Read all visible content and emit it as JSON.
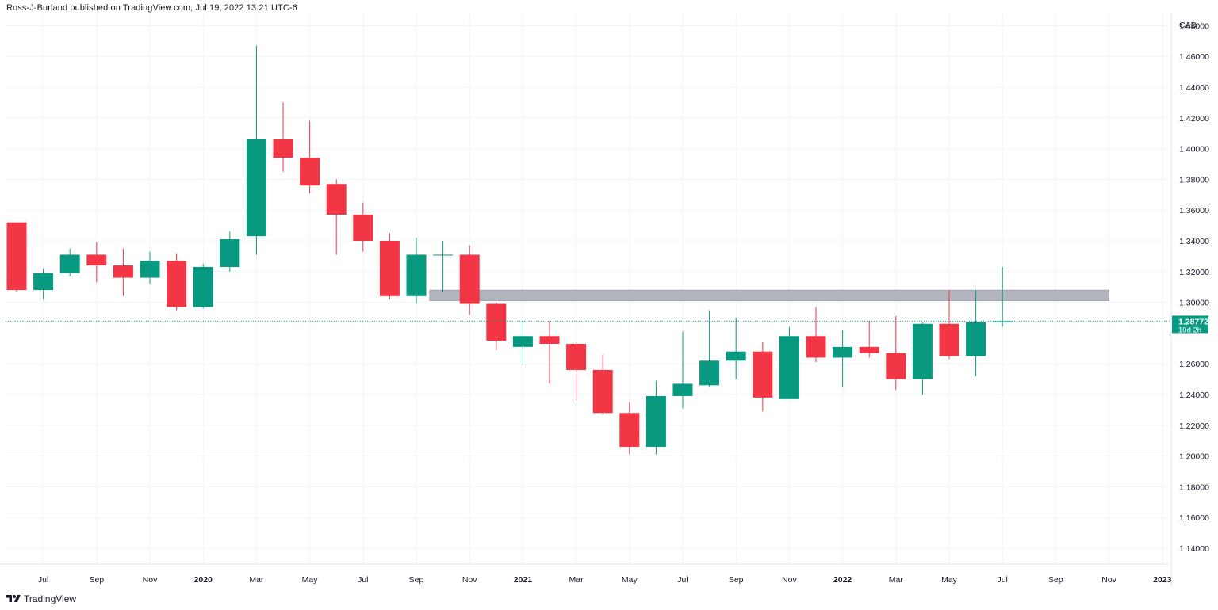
{
  "header": {
    "published": "Ross-J-Burland published on TradingView.com, Jul 19, 2022 13:21 UTC-6"
  },
  "footer": {
    "brand": "TradingView",
    "logo_icon": "tradingview-logo-icon"
  },
  "chart_data": {
    "type": "candlestick",
    "timeframe": "monthly",
    "currency_label": "CAD",
    "y_range": [
      1.13,
      1.485
    ],
    "y_ticks": [
      "1.48000",
      "1.46000",
      "1.44000",
      "1.42000",
      "1.40000",
      "1.38000",
      "1.36000",
      "1.34000",
      "1.32000",
      "1.30000",
      "1.26000",
      "1.24000",
      "1.22000",
      "1.20000",
      "1.18000",
      "1.16000",
      "1.14000"
    ],
    "x_labels": [
      {
        "text": "Jul",
        "i": 1
      },
      {
        "text": "Sep",
        "i": 3
      },
      {
        "text": "Nov",
        "i": 5
      },
      {
        "text": "2020",
        "i": 7,
        "bold": true
      },
      {
        "text": "Mar",
        "i": 9
      },
      {
        "text": "May",
        "i": 11
      },
      {
        "text": "Jul",
        "i": 13
      },
      {
        "text": "Sep",
        "i": 15
      },
      {
        "text": "Nov",
        "i": 17
      },
      {
        "text": "2021",
        "i": 19,
        "bold": true
      },
      {
        "text": "Mar",
        "i": 21
      },
      {
        "text": "May",
        "i": 23
      },
      {
        "text": "Jul",
        "i": 25
      },
      {
        "text": "Sep",
        "i": 27
      },
      {
        "text": "Nov",
        "i": 29
      },
      {
        "text": "2022",
        "i": 31,
        "bold": true
      },
      {
        "text": "Mar",
        "i": 33
      },
      {
        "text": "May",
        "i": 35
      },
      {
        "text": "Jul",
        "i": 37
      },
      {
        "text": "Sep",
        "i": 39
      },
      {
        "text": "Nov",
        "i": 41
      },
      {
        "text": "2023",
        "i": 43,
        "bold": true
      }
    ],
    "candles": [
      {
        "o": 1.352,
        "h": 1.352,
        "l": 1.307,
        "c": 1.308
      },
      {
        "o": 1.308,
        "h": 1.322,
        "l": 1.302,
        "c": 1.319
      },
      {
        "o": 1.319,
        "h": 1.335,
        "l": 1.317,
        "c": 1.331
      },
      {
        "o": 1.331,
        "h": 1.339,
        "l": 1.313,
        "c": 1.324
      },
      {
        "o": 1.324,
        "h": 1.335,
        "l": 1.304,
        "c": 1.316
      },
      {
        "o": 1.316,
        "h": 1.333,
        "l": 1.312,
        "c": 1.327
      },
      {
        "o": 1.327,
        "h": 1.332,
        "l": 1.295,
        "c": 1.297
      },
      {
        "o": 1.297,
        "h": 1.325,
        "l": 1.296,
        "c": 1.323
      },
      {
        "o": 1.323,
        "h": 1.346,
        "l": 1.32,
        "c": 1.341
      },
      {
        "o": 1.343,
        "h": 1.467,
        "l": 1.331,
        "c": 1.406
      },
      {
        "o": 1.406,
        "h": 1.43,
        "l": 1.385,
        "c": 1.394
      },
      {
        "o": 1.394,
        "h": 1.418,
        "l": 1.371,
        "c": 1.376
      },
      {
        "o": 1.377,
        "h": 1.38,
        "l": 1.331,
        "c": 1.357
      },
      {
        "o": 1.357,
        "h": 1.365,
        "l": 1.333,
        "c": 1.34
      },
      {
        "o": 1.34,
        "h": 1.345,
        "l": 1.302,
        "c": 1.304
      },
      {
        "o": 1.304,
        "h": 1.342,
        "l": 1.299,
        "c": 1.331
      },
      {
        "o": 1.331,
        "h": 1.34,
        "l": 1.307,
        "c": 1.331
      },
      {
        "o": 1.331,
        "h": 1.337,
        "l": 1.292,
        "c": 1.299
      },
      {
        "o": 1.299,
        "h": 1.3,
        "l": 1.269,
        "c": 1.275
      },
      {
        "o": 1.271,
        "h": 1.288,
        "l": 1.259,
        "c": 1.278
      },
      {
        "o": 1.278,
        "h": 1.288,
        "l": 1.247,
        "c": 1.273
      },
      {
        "o": 1.273,
        "h": 1.274,
        "l": 1.236,
        "c": 1.256
      },
      {
        "o": 1.256,
        "h": 1.266,
        "l": 1.227,
        "c": 1.228
      },
      {
        "o": 1.228,
        "h": 1.235,
        "l": 1.201,
        "c": 1.206
      },
      {
        "o": 1.206,
        "h": 1.249,
        "l": 1.201,
        "c": 1.239
      },
      {
        "o": 1.239,
        "h": 1.281,
        "l": 1.231,
        "c": 1.247
      },
      {
        "o": 1.246,
        "h": 1.295,
        "l": 1.245,
        "c": 1.262
      },
      {
        "o": 1.262,
        "h": 1.29,
        "l": 1.25,
        "c": 1.268
      },
      {
        "o": 1.268,
        "h": 1.274,
        "l": 1.229,
        "c": 1.238
      },
      {
        "o": 1.237,
        "h": 1.284,
        "l": 1.237,
        "c": 1.278
      },
      {
        "o": 1.278,
        "h": 1.297,
        "l": 1.261,
        "c": 1.264
      },
      {
        "o": 1.264,
        "h": 1.282,
        "l": 1.245,
        "c": 1.271
      },
      {
        "o": 1.271,
        "h": 1.288,
        "l": 1.264,
        "c": 1.267
      },
      {
        "o": 1.267,
        "h": 1.291,
        "l": 1.243,
        "c": 1.25
      },
      {
        "o": 1.25,
        "h": 1.287,
        "l": 1.24,
        "c": 1.286
      },
      {
        "o": 1.286,
        "h": 1.308,
        "l": 1.263,
        "c": 1.265
      },
      {
        "o": 1.265,
        "h": 1.308,
        "l": 1.252,
        "c": 1.287
      },
      {
        "o": 1.287,
        "h": 1.323,
        "l": 1.284,
        "c": 1.2877
      }
    ],
    "zone": {
      "from_i": 15.5,
      "to_i": 41.0,
      "low": 1.301,
      "high": 1.308,
      "color": "#b2b5be"
    },
    "current_price": {
      "value": 1.28772,
      "label": "1.28772",
      "countdown": "10d 2h"
    },
    "colors": {
      "up": "#089981",
      "down": "#f23645",
      "grid": "#f0f3fa",
      "price_line": "#089981"
    }
  }
}
